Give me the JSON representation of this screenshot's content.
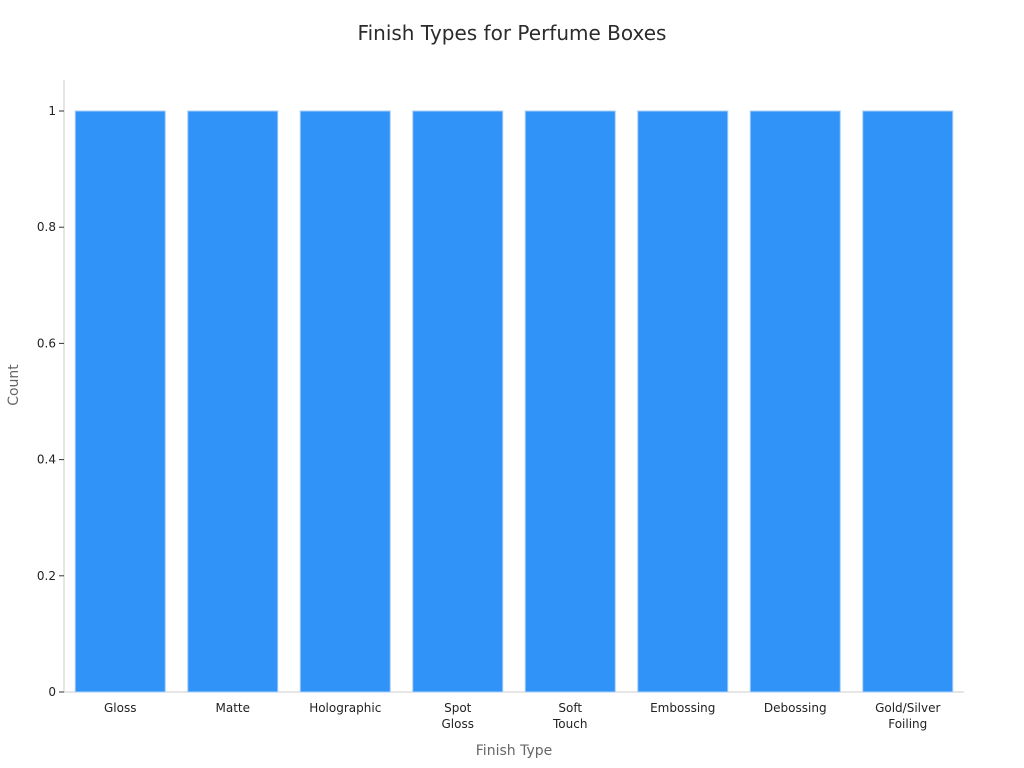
{
  "chart_data": {
    "type": "bar",
    "title": "Finish Types for Perfume Boxes",
    "xlabel": "Finish Type",
    "ylabel": "Count",
    "categories": [
      [
        "Gloss"
      ],
      [
        "Matte"
      ],
      [
        "Holographic"
      ],
      [
        "Spot",
        "Gloss"
      ],
      [
        "Soft",
        "Touch"
      ],
      [
        "Embossing"
      ],
      [
        "Debossing"
      ],
      [
        "Gold/Silver",
        "Foiling"
      ]
    ],
    "values": [
      1,
      1,
      1,
      1,
      1,
      1,
      1,
      1
    ],
    "ylim": [
      0,
      1
    ],
    "yticks": [
      "0",
      "0.2",
      "0.4",
      "0.6",
      "0.8",
      "1"
    ],
    "ytick_values": [
      0,
      0.2,
      0.4,
      0.6,
      0.8,
      1
    ],
    "grid": false,
    "bar_color": "#2f93f7"
  }
}
